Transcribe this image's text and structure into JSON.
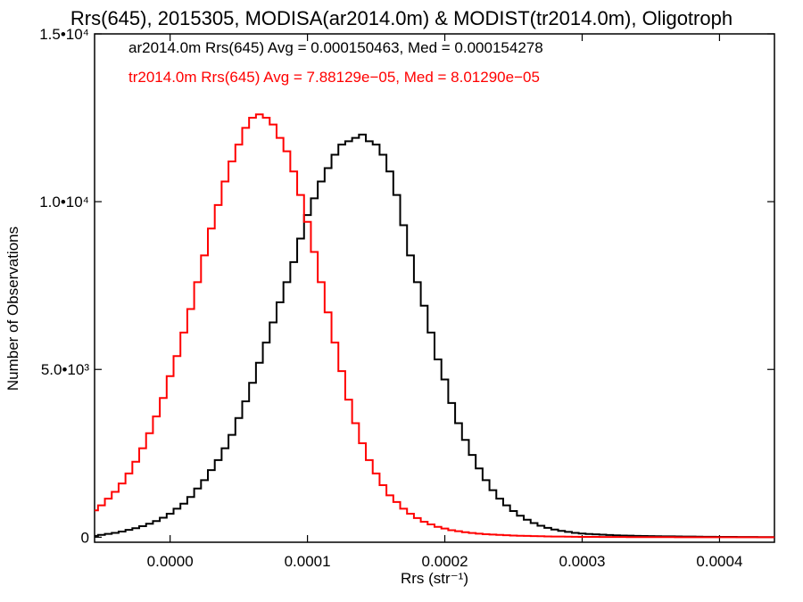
{
  "chart_data": {
    "type": "line",
    "title": "Rrs(645), 2015305, MODISA(ar2014.0m) & MODIST(tr2014.0m), Oligotroph",
    "xlabel": "Rrs (str⁻¹)",
    "ylabel": "Number of Observations",
    "xlim": [
      -5.5e-05,
      0.00044
    ],
    "ylim": [
      -150,
      15000
    ],
    "x_ticks": [
      {
        "value": 0.0,
        "label": "0.0000"
      },
      {
        "value": 0.0001,
        "label": "0.0001"
      },
      {
        "value": 0.0002,
        "label": "0.0002"
      },
      {
        "value": 0.0003,
        "label": "0.0003"
      },
      {
        "value": 0.0004,
        "label": "0.0004"
      }
    ],
    "y_ticks": [
      {
        "value": 0,
        "label": "0"
      },
      {
        "value": 5000,
        "label": "5.0•10³"
      },
      {
        "value": 10000,
        "label": "1.0•10⁴"
      },
      {
        "value": 15000,
        "label": "1.5•10⁴"
      }
    ],
    "annotations": [
      {
        "text": "ar2014.0m Rrs(645) Avg = 0.000150463, Med = 0.000154278",
        "color": "#000000"
      },
      {
        "text": "tr2014.0m Rrs(645) Avg = 7.88129e−05, Med = 8.01290e−05",
        "color": "#ff0000"
      }
    ],
    "grid": false,
    "series": [
      {
        "color": "#000000",
        "x": [
          -5.5e-05,
          -5e-05,
          -4.5e-05,
          -4e-05,
          -3.5e-05,
          -3e-05,
          -2.5e-05,
          -2e-05,
          -1.5e-05,
          -1e-05,
          -5e-06,
          0.0,
          5e-06,
          1e-05,
          1.5e-05,
          2e-05,
          2.5e-05,
          3e-05,
          3.5e-05,
          4e-05,
          4.5e-05,
          5e-05,
          5.5e-05,
          6e-05,
          6.5e-05,
          7e-05,
          7.5e-05,
          8e-05,
          8.5e-05,
          9e-05,
          9.5e-05,
          0.0001,
          0.000105,
          0.00011,
          0.000115,
          0.00012,
          0.000125,
          0.00013,
          0.000135,
          0.00014,
          0.000145,
          0.00015,
          0.000155,
          0.00016,
          0.000165,
          0.00017,
          0.000175,
          0.00018,
          0.000185,
          0.00019,
          0.000195,
          0.0002,
          0.000205,
          0.00021,
          0.000215,
          0.00022,
          0.000225,
          0.00023,
          0.000235,
          0.00024,
          0.000245,
          0.00025,
          0.000255,
          0.00026,
          0.000265,
          0.00027,
          0.000275,
          0.00028,
          0.000285,
          0.00029,
          0.000295,
          0.0003,
          0.000305,
          0.00031,
          0.000315,
          0.00032,
          0.000325,
          0.00033,
          0.000335,
          0.00034,
          0.000345,
          0.00035,
          0.000355,
          0.00036,
          0.000365,
          0.00037,
          0.000375,
          0.00038,
          0.000385,
          0.00039,
          0.000395,
          0.0004,
          0.000405,
          0.00041,
          0.000415,
          0.00042,
          0.000425,
          0.00043,
          0.000435,
          0.00044
        ],
        "values": [
          40,
          70,
          100,
          130,
          170,
          220,
          270,
          330,
          400,
          480,
          580,
          700,
          850,
          1000,
          1200,
          1450,
          1700,
          2000,
          2300,
          2650,
          3050,
          3550,
          4050,
          4600,
          5200,
          5800,
          6400,
          7000,
          7600,
          8200,
          8900,
          9600,
          10100,
          10600,
          11000,
          11400,
          11700,
          11800,
          11900,
          12000,
          11800,
          11700,
          11400,
          10900,
          10200,
          9300,
          8400,
          7600,
          6900,
          6100,
          5300,
          4700,
          4000,
          3400,
          2900,
          2450,
          2050,
          1700,
          1400,
          1150,
          950,
          780,
          640,
          520,
          420,
          340,
          280,
          230,
          190,
          160,
          130,
          110,
          95,
          85,
          75,
          65,
          55,
          50,
          45,
          40,
          35,
          32,
          30,
          27,
          25,
          22,
          20,
          18,
          16,
          14,
          12,
          10,
          9,
          8,
          7,
          6,
          5,
          4,
          3,
          2
        ]
      },
      {
        "color": "#ff0000",
        "x": [
          -5.5e-05,
          -5e-05,
          -4.5e-05,
          -4e-05,
          -3.5e-05,
          -3e-05,
          -2.5e-05,
          -2e-05,
          -1.5e-05,
          -1e-05,
          -5e-06,
          0.0,
          5e-06,
          1e-05,
          1.5e-05,
          2e-05,
          2.5e-05,
          3e-05,
          3.5e-05,
          4e-05,
          4.5e-05,
          5e-05,
          5.5e-05,
          6e-05,
          6.5e-05,
          7e-05,
          7.5e-05,
          8e-05,
          8.5e-05,
          9e-05,
          9.5e-05,
          0.0001,
          0.000105,
          0.00011,
          0.000115,
          0.00012,
          0.000125,
          0.00013,
          0.000135,
          0.00014,
          0.000145,
          0.00015,
          0.000155,
          0.00016,
          0.000165,
          0.00017,
          0.000175,
          0.00018,
          0.000185,
          0.00019,
          0.000195,
          0.0002,
          0.000205,
          0.00021,
          0.000215,
          0.00022,
          0.000225,
          0.00023,
          0.000235,
          0.00024,
          0.000245,
          0.00025,
          0.000255,
          0.00026,
          0.000265,
          0.00027,
          0.000275,
          0.00028,
          0.000285,
          0.00029,
          0.000295,
          0.0003,
          0.000305,
          0.00031,
          0.000315,
          0.00032,
          0.000325,
          0.00033,
          0.000335,
          0.00034,
          0.000345,
          0.00035,
          0.000355,
          0.00036,
          0.000365,
          0.00037,
          0.000375,
          0.00038,
          0.000385,
          0.00039,
          0.000395,
          0.0004,
          0.000405,
          0.00041,
          0.000415,
          0.00042,
          0.000425,
          0.00043,
          0.000435,
          0.00044
        ],
        "values": [
          800,
          950,
          1150,
          1350,
          1600,
          1900,
          2250,
          2650,
          3100,
          3600,
          4150,
          4800,
          5400,
          6100,
          6800,
          7600,
          8400,
          9200,
          9900,
          10600,
          11200,
          11700,
          12200,
          12500,
          12600,
          12500,
          12300,
          11900,
          11500,
          10900,
          10200,
          9400,
          8500,
          7600,
          6700,
          5800,
          4950,
          4100,
          3400,
          2800,
          2300,
          1900,
          1550,
          1250,
          1050,
          850,
          700,
          570,
          460,
          380,
          310,
          260,
          210,
          180,
          150,
          125,
          105,
          90,
          78,
          68,
          58,
          50,
          44,
          38,
          32,
          28,
          24,
          21,
          18,
          15,
          13,
          11,
          9,
          8,
          7,
          6,
          5,
          5,
          4,
          4,
          3,
          3,
          2,
          2,
          2,
          1,
          1,
          1,
          1,
          1,
          0,
          0,
          0,
          0,
          0,
          0,
          0,
          0,
          0,
          0
        ]
      }
    ]
  }
}
